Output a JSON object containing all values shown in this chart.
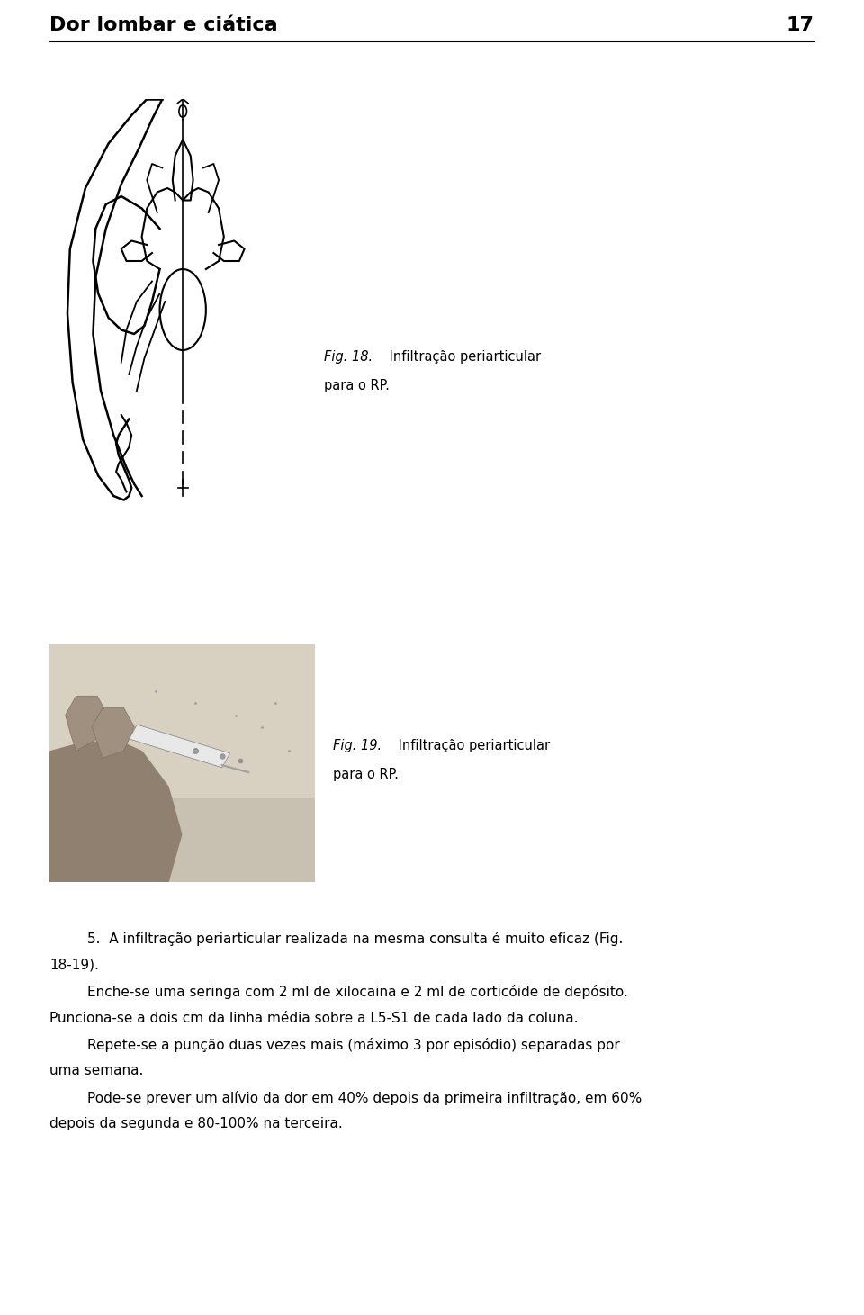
{
  "page_width": 9.6,
  "page_height": 14.61,
  "bg_color": "#ffffff",
  "header_title": "Dor lombar e ciática",
  "header_page_num": "17",
  "header_title_fontsize": 16,
  "header_pagenum_fontsize": 16,
  "rule_linewidth": 1.5,
  "fig18_caption_line1_italic": "Fig. 18.",
  "fig18_caption_line1_rest": " Infiltração periarticular",
  "fig18_caption_line2": "para o RP.",
  "fig19_caption_line1_italic": "Fig. 19.",
  "fig19_caption_line1_rest": " Infiltração periarticular",
  "fig19_caption_line2": "para o RP.",
  "body_fontsize": 11.0,
  "body_paragraphs": [
    "5.  A infiltração periarticular realizada na mesma consulta é muito eficaz (Fig.\n18-19).",
    "    Enche-se uma seringa com 2 ml de xilocaina e 2 ml de corticóide de depósito.\nPunciona-se a dois cm da linha média sobre a L5-S1 de cada lado da coluna.",
    "    Repete-se a punção duas vezes mais (máximo 3 por episódio) separadas por\numa semana.",
    "    Pode-se prever um alívio da dor em 40% depois da primeira infiltração, em 60%\ndepois da segunda e 80-100% na terceira."
  ]
}
